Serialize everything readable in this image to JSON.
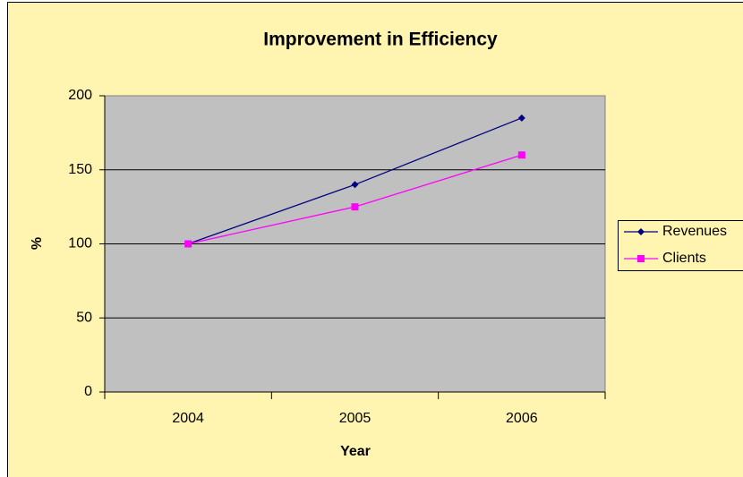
{
  "chart_data": {
    "type": "line",
    "title": "Improvement in Efficiency",
    "x_label": "Year",
    "y_label": "%",
    "categories": [
      "2004",
      "2005",
      "2006"
    ],
    "series": [
      {
        "name": "Revenues",
        "color": "#000080",
        "marker": "diamond",
        "values": [
          100,
          140,
          185
        ]
      },
      {
        "name": "Clients",
        "color": "#ff00ff",
        "marker": "square",
        "values": [
          100,
          125,
          160
        ]
      }
    ],
    "ylim": [
      0,
      200
    ],
    "yticks": [
      0,
      50,
      100,
      150,
      200
    ],
    "grid": true,
    "legend": "right"
  }
}
